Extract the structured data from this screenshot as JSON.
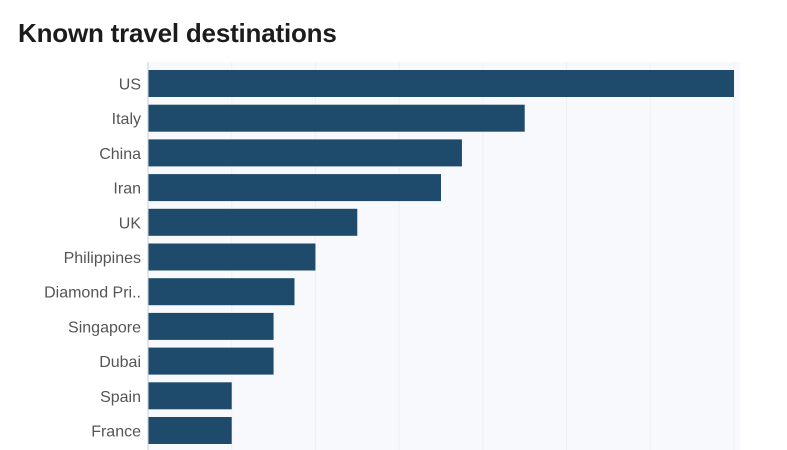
{
  "chart_data": {
    "type": "bar",
    "orientation": "horizontal",
    "title": "Known travel destinations",
    "categories": [
      "US",
      "Italy",
      "China",
      "Iran",
      "UK",
      "Philippines",
      "Diamond Pri..",
      "Singapore",
      "Dubai",
      "Spain",
      "France"
    ],
    "values": [
      28,
      18,
      15,
      14,
      10,
      8,
      7,
      6,
      6,
      4,
      4
    ],
    "xlim": [
      0,
      28
    ],
    "grid": true,
    "legend": "none",
    "colors": {
      "bar": "#1e4a6c",
      "label": "#555555",
      "grid": "#eef2f6",
      "plot_background": "#f7f9fc"
    }
  }
}
